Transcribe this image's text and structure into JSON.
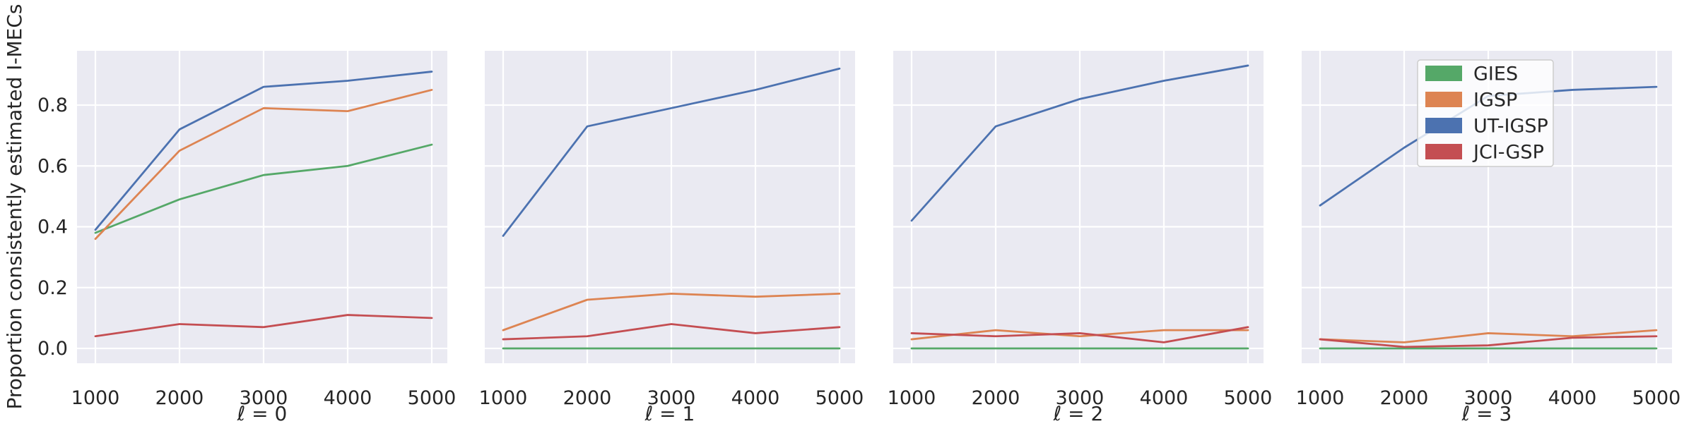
{
  "chart_data": {
    "type": "line",
    "title": "",
    "ylabel": "Proportion consistently estimated I-MECs",
    "x": [
      1000,
      2000,
      3000,
      4000,
      5000
    ],
    "xticklabels": [
      "1000",
      "2000",
      "3000",
      "4000",
      "5000"
    ],
    "yticks": [
      0.0,
      0.2,
      0.4,
      0.6,
      0.8
    ],
    "yticklabels": [
      "0.0",
      "0.2",
      "0.4",
      "0.6",
      "0.8"
    ],
    "ylim": [
      -0.05,
      0.98
    ],
    "grid": "on",
    "background_color": "#eaeaf2",
    "grid_color": "#ffffff",
    "text_color": "#262626",
    "legend": {
      "position": "upper-right-of-last-panel",
      "entries": [
        {
          "label": "GIES",
          "color": "#55a868"
        },
        {
          "label": "IGSP",
          "color": "#dd8452"
        },
        {
          "label": "UT-IGSP",
          "color": "#4c72b0"
        },
        {
          "label": "JCI-GSP",
          "color": "#c44e52"
        }
      ]
    },
    "panels": [
      {
        "xlabel": "ℓ = 0",
        "series": [
          {
            "name": "GIES",
            "color": "#55a868",
            "values": [
              0.38,
              0.49,
              0.57,
              0.6,
              0.67
            ]
          },
          {
            "name": "IGSP",
            "color": "#dd8452",
            "values": [
              0.36,
              0.65,
              0.79,
              0.78,
              0.85
            ]
          },
          {
            "name": "UT-IGSP",
            "color": "#4c72b0",
            "values": [
              0.39,
              0.72,
              0.86,
              0.88,
              0.91
            ]
          },
          {
            "name": "JCI-GSP",
            "color": "#c44e52",
            "values": [
              0.04,
              0.08,
              0.07,
              0.11,
              0.1
            ]
          }
        ]
      },
      {
        "xlabel": "ℓ = 1",
        "series": [
          {
            "name": "GIES",
            "color": "#55a868",
            "values": [
              0.0,
              0.0,
              0.0,
              0.0,
              0.0
            ]
          },
          {
            "name": "IGSP",
            "color": "#dd8452",
            "values": [
              0.06,
              0.16,
              0.18,
              0.17,
              0.18
            ]
          },
          {
            "name": "UT-IGSP",
            "color": "#4c72b0",
            "values": [
              0.37,
              0.73,
              0.79,
              0.85,
              0.92
            ]
          },
          {
            "name": "JCI-GSP",
            "color": "#c44e52",
            "values": [
              0.03,
              0.04,
              0.08,
              0.05,
              0.07
            ]
          }
        ]
      },
      {
        "xlabel": "ℓ = 2",
        "series": [
          {
            "name": "GIES",
            "color": "#55a868",
            "values": [
              0.0,
              0.0,
              0.0,
              0.0,
              0.0
            ]
          },
          {
            "name": "IGSP",
            "color": "#dd8452",
            "values": [
              0.03,
              0.06,
              0.04,
              0.06,
              0.06
            ]
          },
          {
            "name": "UT-IGSP",
            "color": "#4c72b0",
            "values": [
              0.42,
              0.73,
              0.82,
              0.88,
              0.93
            ]
          },
          {
            "name": "JCI-GSP",
            "color": "#c44e52",
            "values": [
              0.05,
              0.04,
              0.05,
              0.02,
              0.07
            ]
          }
        ]
      },
      {
        "xlabel": "ℓ = 3",
        "series": [
          {
            "name": "GIES",
            "color": "#55a868",
            "values": [
              0.0,
              0.0,
              0.0,
              0.0,
              0.0
            ]
          },
          {
            "name": "IGSP",
            "color": "#dd8452",
            "values": [
              0.03,
              0.02,
              0.05,
              0.04,
              0.06
            ]
          },
          {
            "name": "UT-IGSP",
            "color": "#4c72b0",
            "values": [
              0.47,
              0.66,
              0.83,
              0.85,
              0.86
            ]
          },
          {
            "name": "JCI-GSP",
            "color": "#c44e52",
            "values": [
              0.03,
              0.005,
              0.01,
              0.035,
              0.04
            ]
          }
        ]
      }
    ]
  }
}
